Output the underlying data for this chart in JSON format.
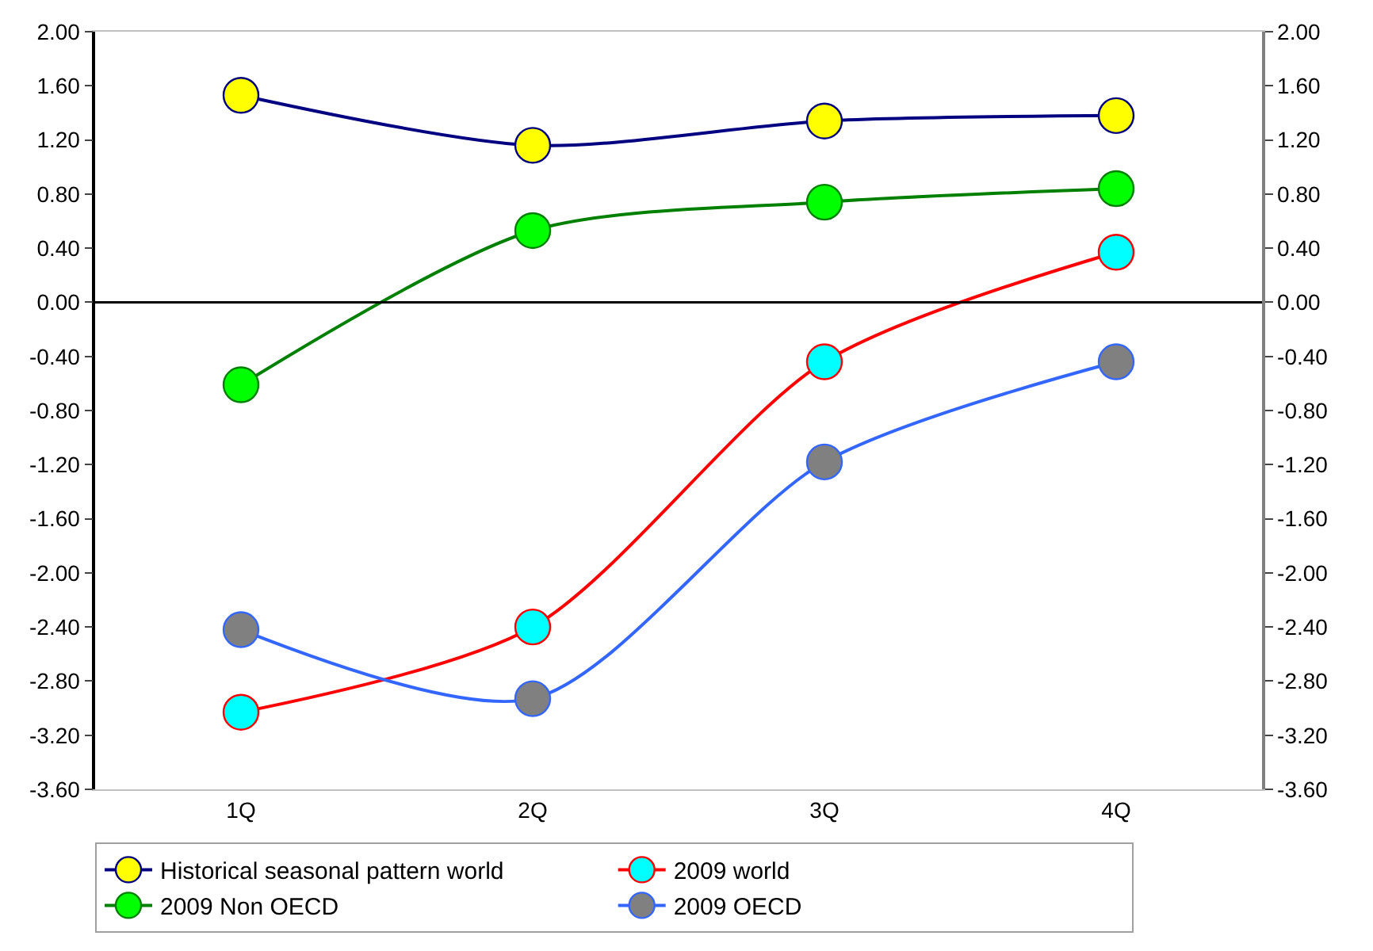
{
  "chart_data": {
    "type": "line",
    "categories": [
      "1Q",
      "2Q",
      "3Q",
      "4Q"
    ],
    "series": [
      {
        "name": "Historical seasonal pattern world",
        "color": "#000080",
        "colors": [
          "#ffff00",
          "#ffff00",
          "#ffff00",
          "#ffff00"
        ],
        "values": [
          1.53,
          1.16,
          1.34,
          1.38
        ]
      },
      {
        "name": "2009 world",
        "color": "#ff0000",
        "colors": [
          "#00ffff",
          "#00ffff",
          "#00ffff",
          "#00ffff"
        ],
        "values": [
          -3.03,
          -2.4,
          -0.44,
          0.37
        ]
      },
      {
        "name": "2009 Non OECD",
        "color": "#008000",
        "colors": [
          "#00ff00",
          "#00ff00",
          "#00ff00",
          "#00ff00"
        ],
        "values": [
          -0.61,
          0.53,
          0.74,
          0.84
        ]
      },
      {
        "name": "2009 OECD",
        "color": "#3366ff",
        "colors": [
          "#808080",
          "#808080",
          "#808080",
          "#808080"
        ],
        "values": [
          -2.42,
          -2.93,
          -1.18,
          -0.44
        ]
      }
    ],
    "ylim": [
      -3.6,
      2.0
    ],
    "yticks": [
      {
        "value": 2.0,
        "label": "2.00"
      },
      {
        "value": 1.6,
        "label": "1.60"
      },
      {
        "value": 1.2,
        "label": "1.20"
      },
      {
        "value": 0.8,
        "label": "0.80"
      },
      {
        "value": 0.4,
        "label": "0.40"
      },
      {
        "value": 0.0,
        "label": "0.00"
      },
      {
        "value": -0.4,
        "label": "-0.40"
      },
      {
        "value": -0.8,
        "label": "-0.80"
      },
      {
        "value": -1.2,
        "label": "-1.20"
      },
      {
        "value": -1.6,
        "label": "-1.60"
      },
      {
        "value": -2.0,
        "label": "-2.00"
      },
      {
        "value": -2.4,
        "label": "-2.40"
      },
      {
        "value": -2.8,
        "label": "-2.80"
      },
      {
        "value": -3.2,
        "label": "-3.20"
      },
      {
        "value": -3.6,
        "label": "-3.60"
      }
    ],
    "y2lim": [
      -3.6,
      2.0
    ],
    "y2ticks": [
      {
        "value": 2.0,
        "label": "2.00"
      },
      {
        "value": 1.6,
        "label": "1.60"
      },
      {
        "value": 1.2,
        "label": "1.20"
      },
      {
        "value": 0.8,
        "label": "0.80"
      },
      {
        "value": 0.4,
        "label": "0.40"
      },
      {
        "value": 0.0,
        "label": "0.00"
      },
      {
        "value": -0.4,
        "label": "-0.40"
      },
      {
        "value": -0.8,
        "label": "-0.80"
      },
      {
        "value": -1.2,
        "label": "-1.20"
      },
      {
        "value": -1.6,
        "label": "-1.60"
      },
      {
        "value": -2.0,
        "label": "-2.00"
      },
      {
        "value": -2.4,
        "label": "-2.40"
      },
      {
        "value": -2.8,
        "label": "-2.80"
      },
      {
        "value": -3.2,
        "label": "-3.20"
      },
      {
        "value": -3.6,
        "label": "-3.60"
      }
    ],
    "ref_lines": [
      {
        "axis": "y",
        "value": 0,
        "color": "#000000"
      }
    ],
    "legend": "bottom",
    "marker": "circle",
    "line_style": "solid"
  }
}
